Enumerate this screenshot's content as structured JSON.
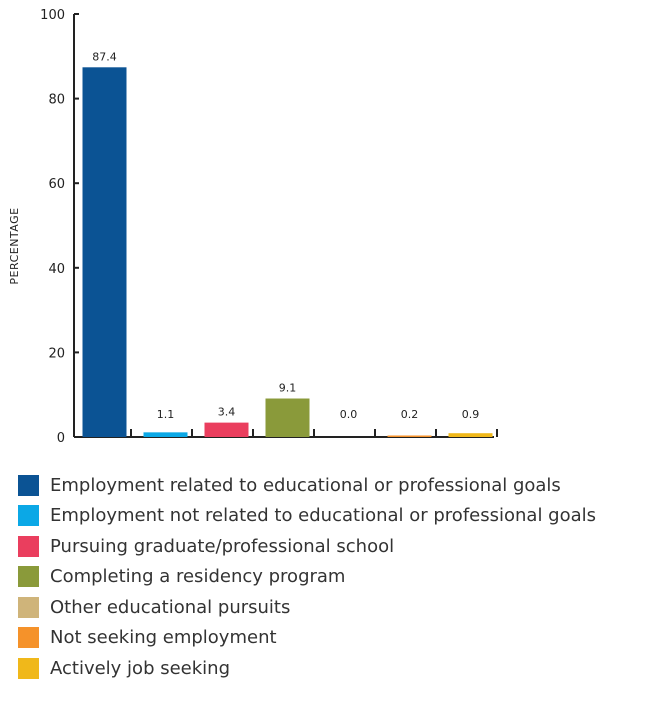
{
  "chart_data": {
    "type": "bar",
    "ylabel": "PERCENTAGE",
    "ylim": [
      0,
      100
    ],
    "yticks": [
      0,
      20,
      40,
      60,
      80,
      100
    ],
    "categories": [
      "Employment related to educational or professional goals",
      "Employment not related to educational or professional goals",
      "Pursuing graduate/professional school",
      "Completing a residency program",
      "Other educational pursuits",
      "Not seeking employment",
      "Actively job seeking"
    ],
    "values": [
      87.4,
      1.1,
      3.4,
      9.1,
      0.0,
      0.2,
      0.9
    ],
    "value_labels": [
      "87.4",
      "1.1",
      "3.4",
      "9.1",
      "0.0",
      "0.2",
      "0.9"
    ],
    "colors": [
      "#0b5394",
      "#0ba8e6",
      "#ea3e5e",
      "#8a9a3a",
      "#cfb47a",
      "#f5922a",
      "#f0b81a"
    ],
    "grid": false,
    "legend_position": "bottom"
  }
}
